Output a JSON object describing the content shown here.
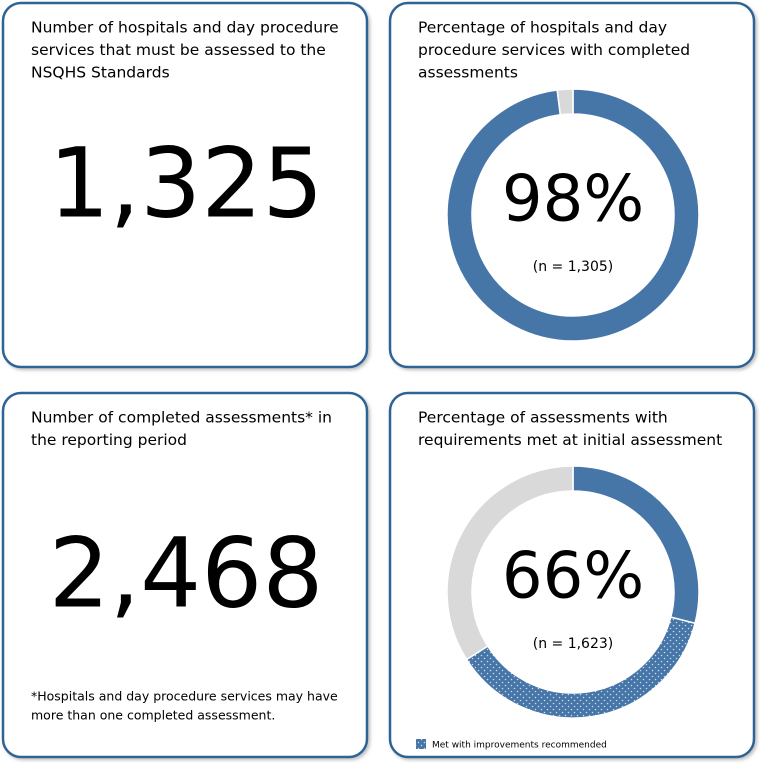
{
  "tiles": [
    {
      "title": [
        "Number of hospitals and day procedure",
        "services that must be assessed to the",
        "NSQHS Standards"
      ],
      "value": "1,325"
    },
    {
      "title": [
        "Number of completed assessments* in",
        "the reporting period"
      ],
      "value": "2,468",
      "footnote": [
        "*Hospitals and day procedure services may have",
        "more than one completed assessment."
      ]
    }
  ],
  "chart_data": [
    {
      "type": "donut",
      "title": [
        "Percentage of hospitals and day",
        "procedure services with completed",
        "assessments"
      ],
      "values": [
        98,
        2
      ],
      "colors": [
        "#4675a8",
        "#d9d9d9"
      ],
      "patterns": [
        null,
        null
      ],
      "center_label": "98%",
      "n_label": "(n = 1,305)"
    },
    {
      "type": "donut",
      "title": [
        "Percentage of assessments with",
        "requirements met at initial assessment"
      ],
      "values": [
        29,
        37,
        34
      ],
      "colors": [
        "#4675a8",
        "#4675a8",
        "#d9d9d9"
      ],
      "patterns": [
        null,
        "dots",
        null
      ],
      "center_label": "66%",
      "n_label": "(n = 1,623)",
      "legend": {
        "label": "Met with improvements recommended",
        "segment": 1
      }
    }
  ]
}
